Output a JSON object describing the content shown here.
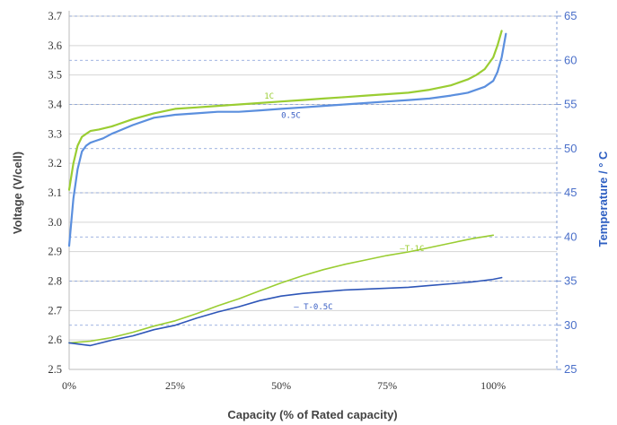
{
  "chart_data": {
    "type": "line",
    "xlabel": "Capacity  (% of Rated capacity)",
    "ylabel": "Voltage    (V/cell)",
    "ylabel_right": "Temperature / ° C",
    "x_ticks": [
      "0%",
      "25%",
      "50%",
      "75%",
      "100%"
    ],
    "y_ticks": [
      "2.5",
      "2.6",
      "2.7",
      "2.8",
      "2.9",
      "3.0",
      "3.1",
      "3.2",
      "3.3",
      "3.4",
      "3.5",
      "3.6",
      "3.7"
    ],
    "y2_ticks": [
      "25",
      "30",
      "35",
      "40",
      "45",
      "50",
      "55",
      "60",
      "65"
    ],
    "xlim": [
      0,
      115
    ],
    "ylim": [
      2.5,
      3.7
    ],
    "y2lim": [
      25,
      65
    ],
    "grid": true,
    "series": [
      {
        "name": "1C",
        "axis": "left",
        "color": "#9acd32",
        "x": [
          0,
          1,
          2,
          3,
          4,
          5,
          7,
          10,
          15,
          20,
          25,
          30,
          35,
          40,
          45,
          50,
          55,
          60,
          65,
          70,
          75,
          80,
          85,
          90,
          94,
          96,
          98,
          100,
          101,
          102
        ],
        "y": [
          3.11,
          3.2,
          3.26,
          3.29,
          3.3,
          3.31,
          3.315,
          3.325,
          3.35,
          3.37,
          3.385,
          3.39,
          3.395,
          3.4,
          3.405,
          3.41,
          3.415,
          3.42,
          3.425,
          3.43,
          3.435,
          3.44,
          3.45,
          3.465,
          3.485,
          3.5,
          3.52,
          3.56,
          3.6,
          3.65
        ]
      },
      {
        "name": "0.5C",
        "axis": "left",
        "color": "#5b8fde",
        "x": [
          0,
          1,
          2,
          3,
          4,
          5,
          6,
          8,
          10,
          15,
          20,
          25,
          30,
          35,
          40,
          45,
          50,
          55,
          60,
          65,
          70,
          75,
          80,
          85,
          90,
          94,
          98,
          100,
          101,
          102,
          103
        ],
        "y": [
          2.92,
          3.08,
          3.18,
          3.24,
          3.26,
          3.27,
          3.275,
          3.285,
          3.3,
          3.33,
          3.355,
          3.365,
          3.37,
          3.375,
          3.375,
          3.38,
          3.385,
          3.39,
          3.395,
          3.4,
          3.405,
          3.41,
          3.415,
          3.42,
          3.43,
          3.44,
          3.46,
          3.48,
          3.51,
          3.56,
          3.64
        ]
      },
      {
        "name": "T-1C",
        "axis": "right",
        "color": "#9acd32",
        "x": [
          0,
          5,
          10,
          15,
          20,
          25,
          30,
          35,
          40,
          45,
          50,
          55,
          60,
          65,
          70,
          75,
          80,
          85,
          90,
          95,
          100
        ],
        "y": [
          28.0,
          28.2,
          28.6,
          29.2,
          29.9,
          30.5,
          31.3,
          32.2,
          33.0,
          33.9,
          34.8,
          35.6,
          36.3,
          36.9,
          37.4,
          37.9,
          38.3,
          38.8,
          39.3,
          39.8,
          40.2
        ]
      },
      {
        "name": "T-0.5C",
        "axis": "right",
        "color": "#2e56b8",
        "x": [
          0,
          5,
          10,
          15,
          20,
          25,
          30,
          35,
          40,
          45,
          50,
          55,
          60,
          65,
          70,
          75,
          80,
          85,
          90,
          95,
          100,
          102
        ],
        "y": [
          28.0,
          27.7,
          28.3,
          28.8,
          29.5,
          30.0,
          30.8,
          31.5,
          32.1,
          32.8,
          33.3,
          33.6,
          33.8,
          34.0,
          34.1,
          34.2,
          34.3,
          34.5,
          34.7,
          34.9,
          35.2,
          35.4
        ]
      }
    ],
    "annotations": [
      {
        "text": "1C",
        "x": 46,
        "y": 3.42,
        "color": "#9acd32"
      },
      {
        "text": "0.5C",
        "x": 50,
        "y": 3.355,
        "color": "#3a5fc4"
      },
      {
        "text": "—T-1C",
        "x": 78,
        "y2": 38.4,
        "color": "#9acd32"
      },
      {
        "text": "— T-0.5C",
        "x": 53,
        "y2": 31.8,
        "color": "#3a5fc4"
      }
    ]
  }
}
